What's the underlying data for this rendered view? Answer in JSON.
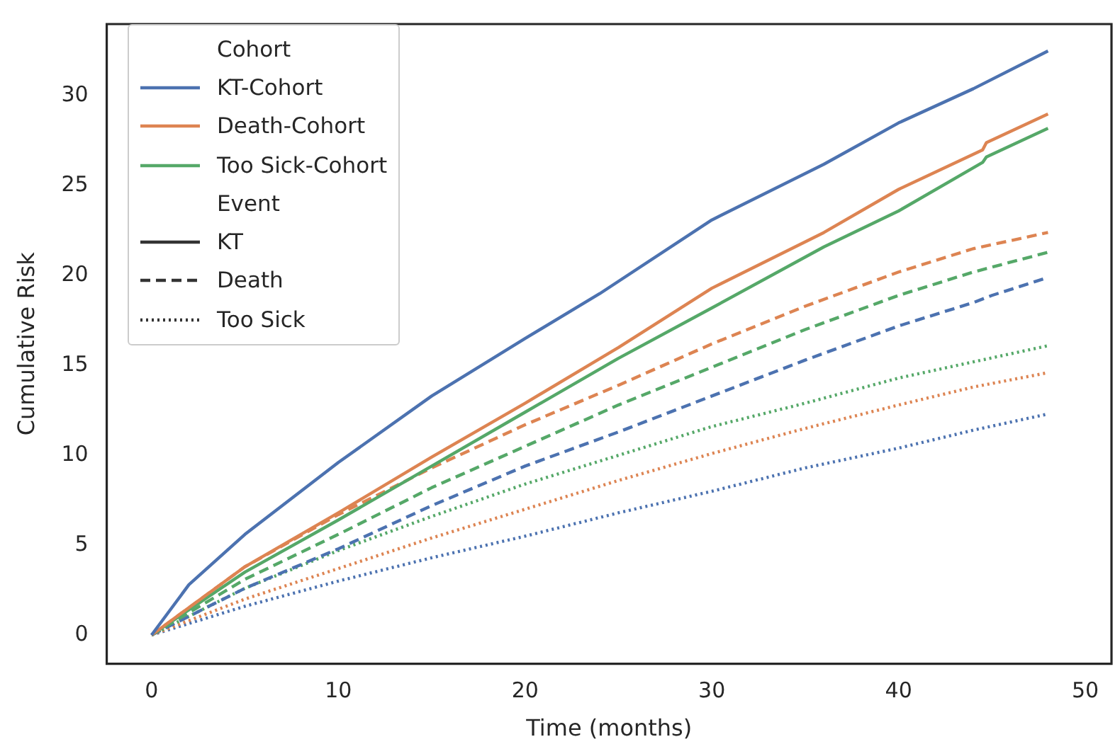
{
  "chart_data": {
    "type": "line",
    "xlabel": "Time (months)",
    "ylabel": "Cumulative Risk",
    "legend_title": "Cohort",
    "annotations": [
      "Event"
    ],
    "legend": "top left",
    "grid": false,
    "marker": "none",
    "xlim": [
      -2.4,
      51.4
    ],
    "xticks": [
      0,
      10,
      20,
      30,
      40,
      50
    ],
    "ylim": [
      -1.6,
      34
    ],
    "yticks": [
      0,
      5,
      10,
      15,
      20,
      25,
      30
    ],
    "series": [
      {
        "name": "KT-Cohort",
        "color": "#4c72b0",
        "line_style": "solid",
        "x": [
          0,
          2,
          5,
          10,
          15,
          20,
          24,
          30,
          36,
          40,
          44,
          48
        ],
        "values": [
          0,
          2.8,
          5.6,
          9.6,
          13.3,
          16.5,
          19.0,
          23.1,
          26.2,
          28.5,
          30.4,
          32.5
        ]
      },
      {
        "name": "Death-Cohort",
        "color": "#dd8452",
        "line_style": "solid",
        "x": [
          0,
          5,
          10,
          15,
          20,
          25,
          30,
          36,
          40,
          44.5,
          44.7,
          48
        ],
        "values": [
          0,
          3.8,
          6.8,
          9.9,
          12.9,
          16.0,
          19.3,
          22.4,
          24.8,
          27.0,
          27.4,
          29.0
        ]
      },
      {
        "name": "Too Sick-Cohort",
        "color": "#55a868",
        "line_style": "solid",
        "x": [
          0,
          5,
          10,
          15,
          20,
          25,
          30,
          36,
          40,
          44.5,
          44.7,
          48
        ],
        "values": [
          0,
          3.5,
          6.4,
          9.4,
          12.4,
          15.4,
          18.2,
          21.6,
          23.6,
          26.3,
          26.6,
          28.2
        ]
      },
      {
        "color": "#dd8452",
        "line_style": "dashed",
        "x": [
          0,
          5,
          10,
          15,
          20,
          25,
          30,
          35,
          40,
          44,
          48
        ],
        "values": [
          0,
          3.8,
          6.7,
          9.3,
          11.7,
          13.9,
          16.2,
          18.3,
          20.2,
          21.5,
          22.4
        ]
      },
      {
        "color": "#55a868",
        "line_style": "dashed",
        "x": [
          0,
          5,
          10,
          15,
          20,
          25,
          30,
          35,
          40,
          44,
          48
        ],
        "values": [
          0,
          3.1,
          5.6,
          8.2,
          10.5,
          12.8,
          14.9,
          17.0,
          18.9,
          20.2,
          21.3
        ]
      },
      {
        "color": "#4c72b0",
        "line_style": "dashed",
        "x": [
          0,
          5,
          10,
          15,
          20,
          25,
          30,
          35,
          40,
          44,
          45,
          48
        ],
        "values": [
          0,
          2.6,
          4.8,
          7.2,
          9.4,
          11.3,
          13.3,
          15.3,
          17.2,
          18.5,
          18.9,
          19.9
        ]
      },
      {
        "color": "#55a868",
        "line_style": "dotted",
        "x": [
          0,
          5,
          10,
          15,
          20,
          25,
          30,
          35,
          40,
          44,
          48
        ],
        "values": [
          0,
          2.6,
          4.7,
          6.6,
          8.4,
          10.0,
          11.6,
          12.9,
          14.3,
          15.2,
          16.1
        ]
      },
      {
        "color": "#dd8452",
        "line_style": "dotted",
        "x": [
          0,
          5,
          10,
          15,
          20,
          25,
          30,
          35,
          40,
          44,
          48
        ],
        "values": [
          0,
          2.0,
          3.7,
          5.4,
          7.0,
          8.6,
          10.1,
          11.5,
          12.8,
          13.8,
          14.6
        ]
      },
      {
        "color": "#4c72b0",
        "line_style": "dotted",
        "x": [
          0,
          5,
          10,
          15,
          20,
          25,
          30,
          35,
          40,
          44,
          48
        ],
        "values": [
          0,
          1.6,
          3.0,
          4.3,
          5.5,
          6.8,
          8.0,
          9.3,
          10.4,
          11.4,
          12.3
        ]
      },
      {
        "name": "KT",
        "color": "#333333",
        "line_style": "solid",
        "values": [
          null
        ]
      },
      {
        "name": "Death",
        "color": "#333333",
        "line_style": "dashed",
        "values": [
          null
        ]
      },
      {
        "name": "Too Sick",
        "color": "#333333",
        "line_style": "dotted",
        "values": [
          null
        ]
      }
    ]
  }
}
